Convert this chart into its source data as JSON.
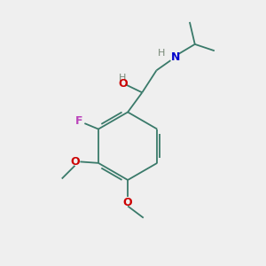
{
  "background_color": "#efefef",
  "bond_color": "#3a7a6a",
  "atom_colors": {
    "F": "#bb44bb",
    "O": "#cc0000",
    "N": "#0000cc",
    "H": "#778877",
    "C": "#3a7a6a"
  },
  "font_size": 9,
  "fig_size": [
    3.0,
    3.0
  ],
  "dpi": 100
}
